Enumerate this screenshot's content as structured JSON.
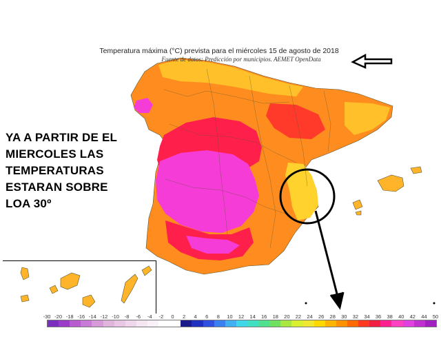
{
  "map": {
    "title": "Temperatura máxima (°C) prevista para el miércoles 15 de agosto de 2018",
    "source": "Fuente de datos: Predicción por municipios. AEMET OpenData"
  },
  "annotation": {
    "lines": [
      "YA A PARTIR DE EL",
      "MIERCOLES LAS",
      "TEMPERATURAS",
      "ESTARAN SOBRE",
      "LOA 30º"
    ]
  },
  "legend": {
    "labels": [
      "-30",
      "-20",
      "-18",
      "-16",
      "-14",
      "-12",
      "-10",
      "-8",
      "-6",
      "-4",
      "-2",
      "0",
      "2",
      "4",
      "6",
      "8",
      "10",
      "12",
      "14",
      "16",
      "18",
      "20",
      "22",
      "24",
      "26",
      "28",
      "30",
      "32",
      "34",
      "36",
      "38",
      "40",
      "42",
      "44",
      "50"
    ],
    "colors": [
      "#7b2fbe",
      "#9a3cc8",
      "#b85ad0",
      "#c77ad6",
      "#d69ad8",
      "#e0b4dc",
      "#e8c6e4",
      "#efd6ec",
      "#f5e6f2",
      "#faf0f8",
      "#ffffff",
      "#ffffff",
      "#1a1a8a",
      "#2030c0",
      "#3050e0",
      "#3a80f0",
      "#40b0f0",
      "#40d8e8",
      "#40e0c0",
      "#50e090",
      "#70e060",
      "#a8e840",
      "#d8f030",
      "#f0e830",
      "#ffd800",
      "#ffb400",
      "#ff9000",
      "#ff6a00",
      "#ff3a1e",
      "#f02040",
      "#ff2090",
      "#ff40c0",
      "#e040e0",
      "#c030d0",
      "#a020c0"
    ]
  },
  "colors": {
    "hot_magenta": "#f53cd6",
    "very_hot_red": "#ff1f4b",
    "hot_orange": "#ff7a1a",
    "warm_orange": "#ffa321",
    "mild_yellow": "#ffd22e",
    "sea": "#ffffff"
  }
}
